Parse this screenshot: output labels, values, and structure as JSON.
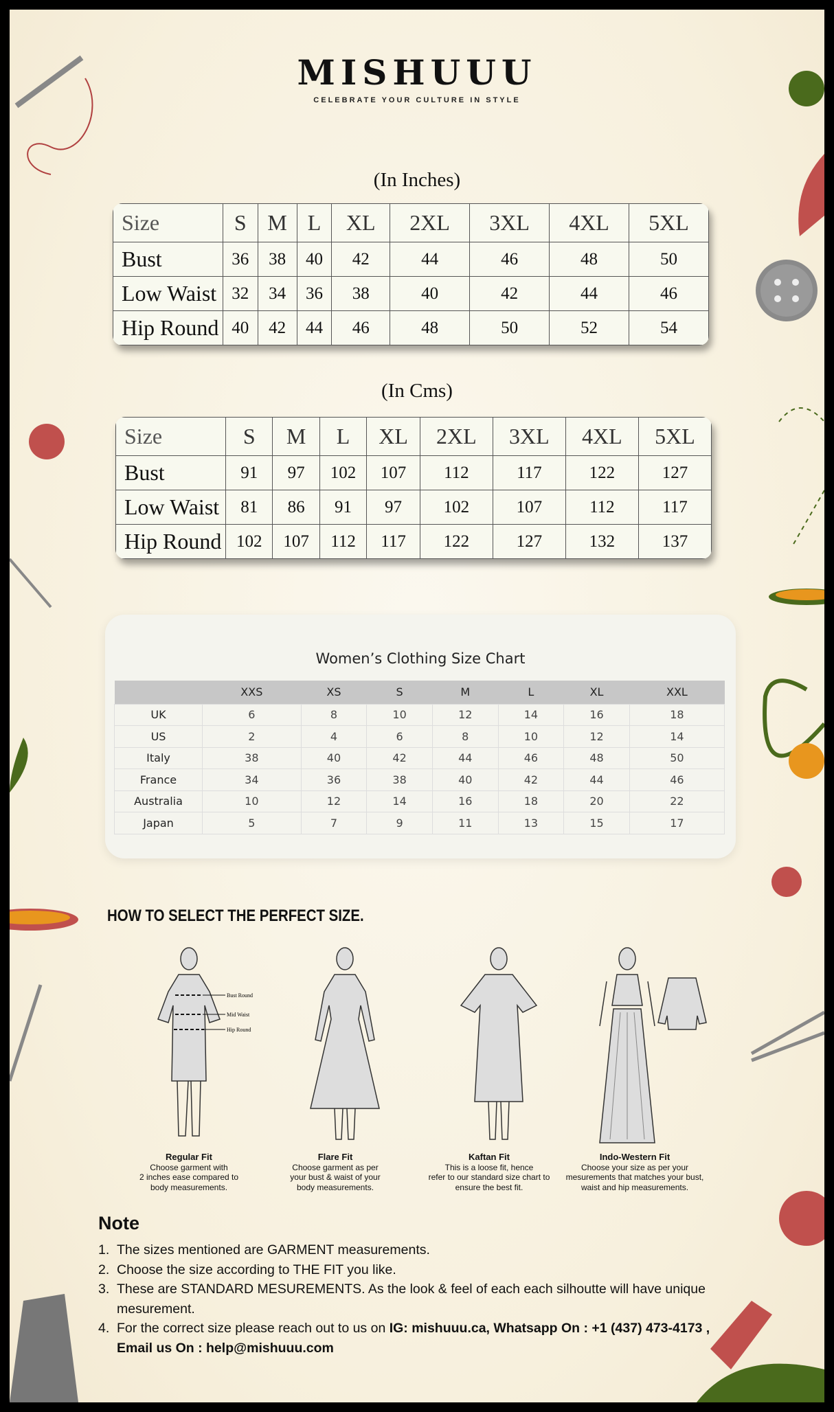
{
  "brand": {
    "name": "MISHUUU",
    "tagline": "CELEBRATE YOUR CULTURE IN STYLE"
  },
  "inches": {
    "caption": "(In Inches)",
    "header": [
      "Size",
      "S",
      "M",
      "L",
      "XL",
      "2XL",
      "3XL",
      "4XL",
      "5XL"
    ],
    "rows": [
      [
        "Bust",
        "36",
        "38",
        "40",
        "42",
        "44",
        "46",
        "48",
        "50"
      ],
      [
        "Low Waist",
        "32",
        "34",
        "36",
        "38",
        "40",
        "42",
        "44",
        "46"
      ],
      [
        "Hip Round",
        "40",
        "42",
        "44",
        "46",
        "48",
        "50",
        "52",
        "54"
      ]
    ]
  },
  "cms": {
    "caption": "(In Cms)",
    "header": [
      "Size",
      "S",
      "M",
      "L",
      "XL",
      "2XL",
      "3XL",
      "4XL",
      "5XL"
    ],
    "rows": [
      [
        "Bust",
        "91",
        "97",
        "102",
        "107",
        "112",
        "117",
        "122",
        "127"
      ],
      [
        "Low Waist",
        "81",
        "86",
        "91",
        "97",
        "102",
        "107",
        "112",
        "117"
      ],
      [
        "Hip Round",
        "102",
        "107",
        "112",
        "117",
        "122",
        "127",
        "132",
        "137"
      ]
    ]
  },
  "womens": {
    "title": "Women’s Clothing Size Chart",
    "header": [
      "",
      "XXS",
      "XS",
      "S",
      "M",
      "L",
      "XL",
      "XXL"
    ],
    "rows": [
      [
        "UK",
        "6",
        "8",
        "10",
        "12",
        "14",
        "16",
        "18"
      ],
      [
        "US",
        "2",
        "4",
        "6",
        "8",
        "10",
        "12",
        "14"
      ],
      [
        "Italy",
        "38",
        "40",
        "42",
        "44",
        "46",
        "48",
        "50"
      ],
      [
        "France",
        "34",
        "36",
        "38",
        "40",
        "42",
        "44",
        "46"
      ],
      [
        "Australia",
        "10",
        "12",
        "14",
        "16",
        "18",
        "20",
        "22"
      ],
      [
        "Japan",
        "5",
        "7",
        "9",
        "11",
        "13",
        "15",
        "17"
      ]
    ]
  },
  "howto": {
    "title": "HOW TO SELECT THE PERFECT SIZE.",
    "labels": {
      "bust": "Bust Round",
      "waist": "Mid Waist",
      "hip": "Hip Round"
    },
    "fits": [
      {
        "name": "Regular Fit",
        "desc": [
          "Choose garment with",
          "2 inches ease compared to",
          "body measurements."
        ]
      },
      {
        "name": "Flare Fit",
        "desc": [
          "Choose garment as per",
          "your bust & waist of your",
          "body measurements."
        ]
      },
      {
        "name": "Kaftan Fit",
        "desc": [
          "This is a loose fit, hence",
          "refer to our standard size chart to",
          "ensure the best fit."
        ]
      },
      {
        "name": "Indo-Western Fit",
        "desc": [
          "Choose your size as per your",
          "mesurements that matches your bust,",
          "waist and hip measurements."
        ]
      }
    ]
  },
  "note": {
    "title": "Note",
    "items": [
      {
        "num": "1.",
        "text": "The sizes mentioned are GARMENT measurements."
      },
      {
        "num": "2.",
        "text": "Choose the size according to THE FIT you like."
      },
      {
        "num": "3.",
        "text": "These are STANDARD MESUREMENTS. As the look & feel of each each silhoutte will have unique mesurement."
      },
      {
        "num": "4.",
        "text": "For the correct size please reach out to us on ",
        "bold": "IG: mishuuu.ca, Whatsapp On : +1 (437) 473-4173 , Email us On : help@mishuuu.com"
      }
    ]
  },
  "colors": {
    "background": "#f8f3e6",
    "accent_red": "#c0504d",
    "accent_green": "#4a6a1c",
    "accent_orange": "#e8961e"
  }
}
